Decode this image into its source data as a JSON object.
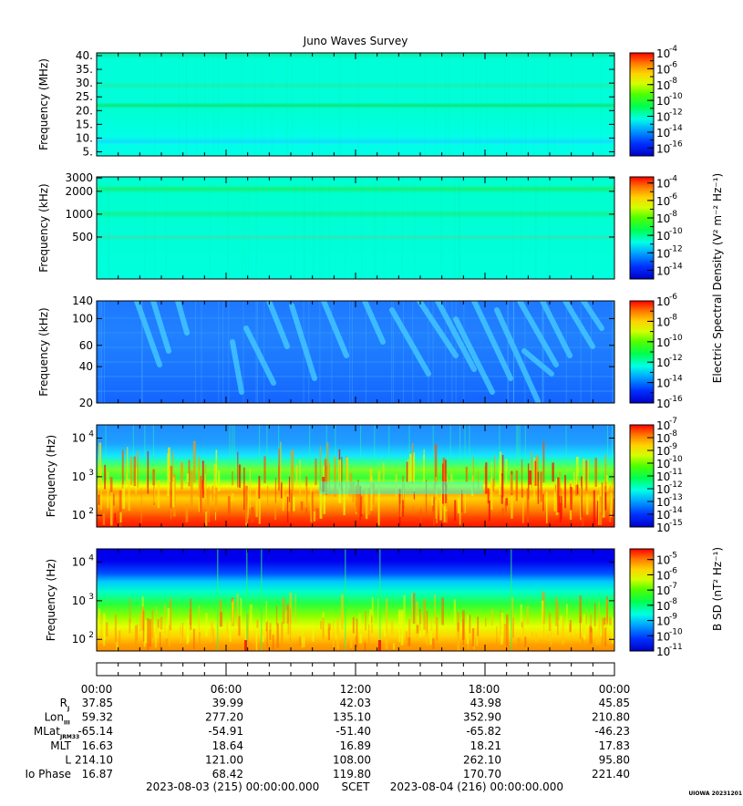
{
  "chart_data": {
    "type": "heatmap",
    "title": "Juno Waves Survey",
    "credit": "UIOWA 20231201",
    "x_axis": {
      "tick_labels": [
        "00:00",
        "06:00",
        "12:00",
        "18:00",
        "00:00"
      ],
      "start_label": "2023-08-03 (215) 00:00:00.000",
      "mid_label": "SCET",
      "end_label": "2023-08-04 (216) 00:00:00.000"
    },
    "ephemeris": {
      "rows": [
        {
          "label": "R",
          "sub": "J",
          "values": [
            "37.85",
            "39.99",
            "42.03",
            "43.98",
            "45.85"
          ]
        },
        {
          "label": "Lon",
          "sub": "III",
          "values": [
            "59.32",
            "277.20",
            "135.10",
            "352.90",
            "210.80"
          ]
        },
        {
          "label": "MLat",
          "sub": "JRM33",
          "values": [
            "-65.14",
            "-54.91",
            "-51.40",
            "-65.82",
            "-46.23"
          ]
        },
        {
          "label": "MLT",
          "sub": "",
          "values": [
            "16.63",
            "18.64",
            "16.89",
            "18.21",
            "17.83"
          ]
        },
        {
          "label": "L",
          "sub": "",
          "values": [
            "214.10",
            "121.00",
            "108.00",
            "262.10",
            "95.80"
          ]
        },
        {
          "label": "Io Phase",
          "sub": "",
          "values": [
            "16.87",
            "68.42",
            "119.80",
            "170.70",
            "221.40"
          ]
        }
      ]
    },
    "shared_labels": {
      "electric": "Electric Spectral Density (V² m⁻² Hz⁻¹)",
      "magnetic": "B SD (nT² Hz⁻¹)"
    },
    "panels": [
      {
        "name": "HFR high",
        "ylabel": "Frequency (MHz)",
        "yscale": "linear",
        "ylim": [
          3.5,
          41
        ],
        "yticks": [
          {
            "v": 40,
            "label": "40."
          },
          {
            "v": 35,
            "label": "35."
          },
          {
            "v": 30,
            "label": "30."
          },
          {
            "v": 25,
            "label": "25."
          },
          {
            "v": 20,
            "label": "20."
          },
          {
            "v": 15,
            "label": "15."
          },
          {
            "v": 10,
            "label": "10."
          },
          {
            "v": 5,
            "label": "5."
          }
        ],
        "colorbar": {
          "exponents": [
            -4,
            -6,
            -8,
            -10,
            -12,
            -14,
            -16
          ],
          "range": [
            -17,
            -4
          ]
        }
      },
      {
        "name": "HFR low",
        "ylabel": "Frequency (kHz)",
        "yscale": "log",
        "ylim": [
          140,
          3100
        ],
        "yticks": [
          {
            "v": 3000,
            "label": "3000"
          },
          {
            "v": 2000,
            "label": "2000"
          },
          {
            "v": 1000,
            "label": "1000"
          },
          {
            "v": 500,
            "label": "500"
          }
        ],
        "colorbar": {
          "exponents": [
            -4,
            -6,
            -8,
            -10,
            -12,
            -14
          ],
          "range": [
            -15,
            -3.3
          ]
        }
      },
      {
        "name": "LFR high",
        "ylabel": "Frequency (kHz)",
        "yscale": "log",
        "ylim": [
          20,
          140
        ],
        "yticks": [
          {
            "v": 140,
            "label": "140"
          },
          {
            "v": 100,
            "label": "100"
          },
          {
            "v": 60,
            "label": "60"
          },
          {
            "v": 40,
            "label": "40"
          },
          {
            "v": 20,
            "label": "20"
          }
        ],
        "colorbar": {
          "exponents": [
            -6,
            -8,
            -10,
            -12,
            -14,
            -16
          ],
          "range": [
            -16,
            -6
          ]
        }
      },
      {
        "name": "LFR E",
        "ylabel": "Frequency (Hz)",
        "yscale": "log",
        "ylim": [
          50,
          22000
        ],
        "yticks": [
          {
            "v": 10000,
            "label": "10",
            "exp": "4"
          },
          {
            "v": 1000,
            "label": "10",
            "exp": "3"
          },
          {
            "v": 100,
            "label": "10",
            "exp": "2"
          }
        ],
        "colorbar": {
          "exponents": [
            -7,
            -8,
            -9,
            -10,
            -11,
            -12,
            -13,
            -14,
            -15
          ],
          "range": [
            -15,
            -7
          ]
        }
      },
      {
        "name": "LFR B",
        "ylabel": "Frequency (Hz)",
        "yscale": "log",
        "ylim": [
          50,
          22000
        ],
        "yticks": [
          {
            "v": 10000,
            "label": "10",
            "exp": "4"
          },
          {
            "v": 1000,
            "label": "10",
            "exp": "3"
          },
          {
            "v": 100,
            "label": "10",
            "exp": "2"
          }
        ],
        "colorbar": {
          "exponents": [
            -5,
            -6,
            -7,
            -8,
            -9,
            -10,
            -11
          ],
          "range": [
            -11,
            -4.3
          ]
        }
      }
    ]
  }
}
